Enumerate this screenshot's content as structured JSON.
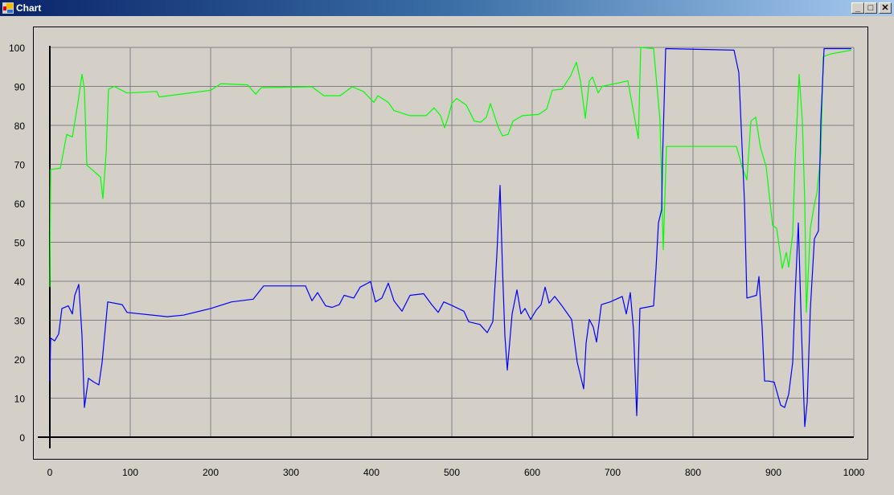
{
  "window": {
    "title": "Chart",
    "icon": "chart-app-icon",
    "buttons": [
      "minimize-icon",
      "maximize-icon",
      "close-icon"
    ]
  },
  "chart_data": {
    "type": "line",
    "title": "",
    "xlabel": "",
    "ylabel": "",
    "xlim": [
      0,
      1000
    ],
    "ylim": [
      0,
      100
    ],
    "grid": true,
    "legend": "none",
    "x_ticks": [
      "0",
      "100",
      "200",
      "300",
      "400",
      "500",
      "600",
      "700",
      "800",
      "900",
      "1000"
    ],
    "y_ticks": [
      "0",
      "10",
      "20",
      "30",
      "40",
      "50",
      "60",
      "70",
      "80",
      "90",
      "100"
    ],
    "series": [
      {
        "color": "#00ff00",
        "points": [
          [
            0,
            38.5
          ],
          [
            1,
            68.7
          ],
          [
            13,
            69
          ],
          [
            21,
            77.7
          ],
          [
            28,
            77
          ],
          [
            35,
            85.9
          ],
          [
            40,
            93.1
          ],
          [
            43,
            89.3
          ],
          [
            46,
            69.8
          ],
          [
            56,
            68
          ],
          [
            63,
            66.7
          ],
          [
            66,
            61.2
          ],
          [
            70,
            72.9
          ],
          [
            73,
            89.3
          ],
          [
            80,
            90
          ],
          [
            96,
            88.3
          ],
          [
            133,
            88.7
          ],
          [
            136,
            87.3
          ],
          [
            200,
            89
          ],
          [
            213,
            90.7
          ],
          [
            246,
            90.4
          ],
          [
            256,
            88
          ],
          [
            263,
            89.7
          ],
          [
            326,
            89.9
          ],
          [
            341,
            87.6
          ],
          [
            361,
            87.6
          ],
          [
            376,
            89.9
          ],
          [
            390,
            88.7
          ],
          [
            403,
            85.9
          ],
          [
            408,
            87.6
          ],
          [
            421,
            85.9
          ],
          [
            428,
            83.8
          ],
          [
            448,
            82.5
          ],
          [
            468,
            82.5
          ],
          [
            478,
            84.5
          ],
          [
            486,
            82.5
          ],
          [
            491,
            79.4
          ],
          [
            495,
            81.8
          ],
          [
            500,
            85.6
          ],
          [
            506,
            86.9
          ],
          [
            518,
            85.2
          ],
          [
            528,
            81.1
          ],
          [
            536,
            80.8
          ],
          [
            543,
            82.1
          ],
          [
            548,
            85.6
          ],
          [
            558,
            79.4
          ],
          [
            563,
            77.3
          ],
          [
            570,
            77.7
          ],
          [
            576,
            81.1
          ],
          [
            588,
            82.5
          ],
          [
            608,
            82.8
          ],
          [
            618,
            84.2
          ],
          [
            625,
            89
          ],
          [
            637,
            89.3
          ],
          [
            648,
            92.8
          ],
          [
            655,
            96.2
          ],
          [
            660,
            91.4
          ],
          [
            666,
            81.8
          ],
          [
            671,
            91.4
          ],
          [
            675,
            92.4
          ],
          [
            682,
            88.3
          ],
          [
            687,
            90
          ],
          [
            719,
            91.4
          ],
          [
            732,
            76.6
          ],
          [
            735,
            100
          ],
          [
            751,
            99.7
          ],
          [
            759,
            81.1
          ],
          [
            763,
            48.1
          ],
          [
            767,
            74.6
          ],
          [
            854,
            74.6
          ],
          [
            861,
            69.4
          ],
          [
            867,
            66
          ],
          [
            872,
            81.1
          ],
          [
            878,
            82.1
          ],
          [
            884,
            74.2
          ],
          [
            891,
            69.4
          ],
          [
            899,
            54.3
          ],
          [
            904,
            53.6
          ],
          [
            911,
            43.3
          ],
          [
            916,
            47.4
          ],
          [
            919,
            43.6
          ],
          [
            924,
            52.2
          ],
          [
            927,
            70.8
          ],
          [
            932,
            93.1
          ],
          [
            936,
            81.1
          ],
          [
            939,
            60.5
          ],
          [
            941,
            32
          ],
          [
            946,
            53.6
          ],
          [
            951,
            59.8
          ],
          [
            954,
            62.5
          ],
          [
            959,
            72.9
          ],
          [
            962,
            97.6
          ],
          [
            971,
            98.3
          ],
          [
            997,
            99.3
          ]
        ]
      },
      {
        "color": "#0000ff",
        "points": [
          [
            0,
            14.4
          ],
          [
            1,
            25.4
          ],
          [
            6,
            24.7
          ],
          [
            11,
            26.5
          ],
          [
            15,
            33
          ],
          [
            23,
            33.7
          ],
          [
            28,
            31.6
          ],
          [
            31,
            36.4
          ],
          [
            36,
            39.2
          ],
          [
            40,
            26.1
          ],
          [
            43,
            7.6
          ],
          [
            48,
            15.1
          ],
          [
            55,
            14.1
          ],
          [
            61,
            13.4
          ],
          [
            65,
            19.2
          ],
          [
            72,
            34.7
          ],
          [
            90,
            34
          ],
          [
            96,
            32
          ],
          [
            146,
            30.9
          ],
          [
            166,
            31.3
          ],
          [
            200,
            33
          ],
          [
            226,
            34.7
          ],
          [
            253,
            35.4
          ],
          [
            266,
            38.8
          ],
          [
            293,
            38.8
          ],
          [
            318,
            38.8
          ],
          [
            326,
            35
          ],
          [
            333,
            37.1
          ],
          [
            343,
            33.7
          ],
          [
            351,
            33.3
          ],
          [
            360,
            34
          ],
          [
            366,
            36.4
          ],
          [
            378,
            35.7
          ],
          [
            386,
            38.5
          ],
          [
            399,
            39.9
          ],
          [
            405,
            34.7
          ],
          [
            413,
            35.7
          ],
          [
            421,
            39.5
          ],
          [
            428,
            35
          ],
          [
            438,
            32.3
          ],
          [
            448,
            36.4
          ],
          [
            465,
            36.8
          ],
          [
            475,
            34
          ],
          [
            483,
            32
          ],
          [
            490,
            34.7
          ],
          [
            501,
            33.7
          ],
          [
            515,
            32.3
          ],
          [
            521,
            29.6
          ],
          [
            535,
            28.9
          ],
          [
            544,
            26.8
          ],
          [
            551,
            29.6
          ],
          [
            556,
            46.7
          ],
          [
            560,
            64.6
          ],
          [
            563,
            43.3
          ],
          [
            566,
            26.1
          ],
          [
            569,
            17.2
          ],
          [
            575,
            31.6
          ],
          [
            581,
            37.8
          ],
          [
            586,
            31.6
          ],
          [
            591,
            33
          ],
          [
            598,
            30.2
          ],
          [
            605,
            32.6
          ],
          [
            611,
            34
          ],
          [
            616,
            38.5
          ],
          [
            621,
            34.4
          ],
          [
            628,
            36.1
          ],
          [
            637,
            33.7
          ],
          [
            649,
            30.2
          ],
          [
            656,
            19.2
          ],
          [
            664,
            12.4
          ],
          [
            667,
            24.1
          ],
          [
            671,
            30.2
          ],
          [
            676,
            28.2
          ],
          [
            680,
            24.4
          ],
          [
            686,
            34
          ],
          [
            697,
            34.7
          ],
          [
            712,
            36.1
          ],
          [
            717,
            31.6
          ],
          [
            722,
            37.1
          ],
          [
            726,
            27.5
          ],
          [
            730,
            5.5
          ],
          [
            734,
            33
          ],
          [
            751,
            33.7
          ],
          [
            754,
            43.3
          ],
          [
            757,
            55
          ],
          [
            761,
            58.4
          ],
          [
            762,
            70.8
          ],
          [
            766,
            99.7
          ],
          [
            851,
            99.3
          ],
          [
            857,
            93.5
          ],
          [
            864,
            60.5
          ],
          [
            867,
            35.7
          ],
          [
            879,
            36.4
          ],
          [
            882,
            41.2
          ],
          [
            886,
            28.2
          ],
          [
            889,
            14.4
          ],
          [
            894,
            14.4
          ],
          [
            901,
            14.1
          ],
          [
            909,
            8.2
          ],
          [
            914,
            7.6
          ],
          [
            919,
            11
          ],
          [
            924,
            19.2
          ],
          [
            927,
            36.4
          ],
          [
            931,
            55
          ],
          [
            935,
            26.8
          ],
          [
            939,
            2.7
          ],
          [
            942,
            8.9
          ],
          [
            946,
            33
          ],
          [
            951,
            50.9
          ],
          [
            956,
            52.9
          ],
          [
            959,
            81.1
          ],
          [
            963,
            99.7
          ],
          [
            997,
            99.7
          ]
        ]
      }
    ]
  }
}
